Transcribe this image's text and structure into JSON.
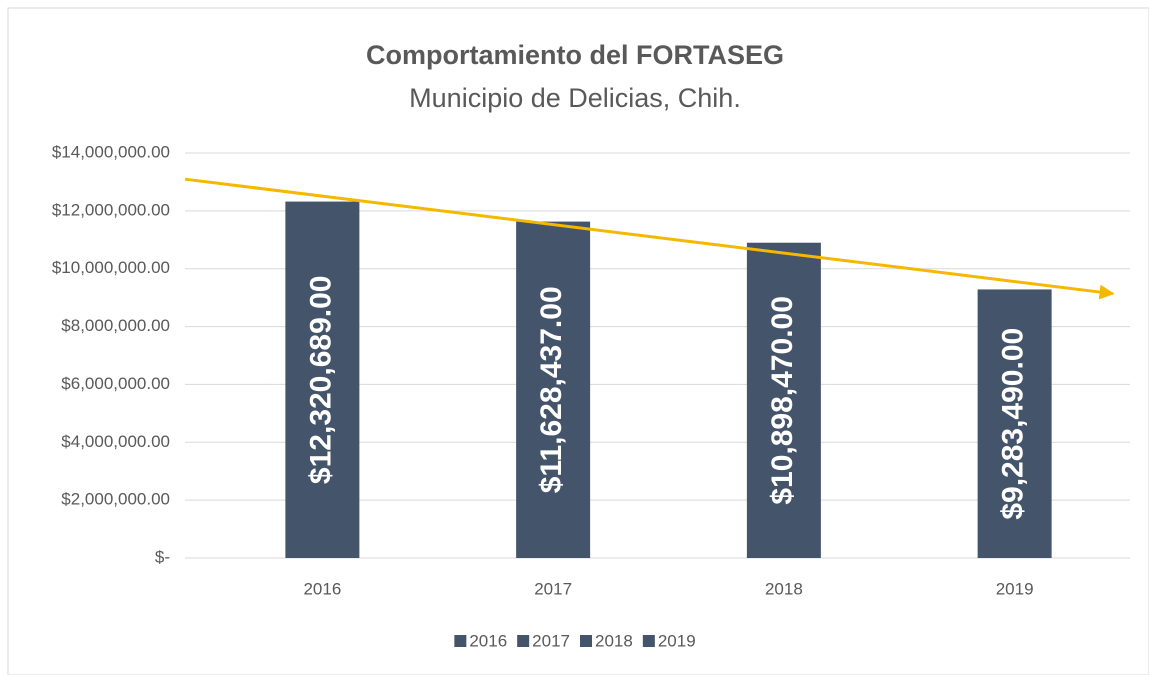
{
  "chart_data": {
    "type": "bar",
    "title": "Comportamiento del FORTASEG",
    "subtitle": "Municipio de Delicias, Chih.",
    "categories": [
      "2016",
      "2017",
      "2018",
      "2019"
    ],
    "series": [
      {
        "name": "2016",
        "color": "#44546a",
        "values": [
          12320689,
          null,
          null,
          null
        ],
        "value_labels": [
          "$12,320,689.00",
          null,
          null,
          null
        ]
      },
      {
        "name": "2017",
        "color": "#44546a",
        "values": [
          null,
          11628437,
          null,
          null
        ],
        "value_labels": [
          null,
          "$11,628,437.00",
          null,
          null
        ]
      },
      {
        "name": "2018",
        "color": "#44546a",
        "values": [
          null,
          null,
          10898470,
          null
        ],
        "value_labels": [
          null,
          null,
          "$10,898,470.00",
          null
        ]
      },
      {
        "name": "2019",
        "color": "#44546a",
        "values": [
          null,
          null,
          null,
          9283490
        ],
        "value_labels": [
          null,
          null,
          null,
          "$9,283,490.00"
        ]
      }
    ],
    "ylim": [
      0,
      14000000
    ],
    "yticks": [
      {
        "value": 0,
        "label": "$-"
      },
      {
        "value": 2000000,
        "label": "$2,000,000.00"
      },
      {
        "value": 4000000,
        "label": "$4,000,000.00"
      },
      {
        "value": 6000000,
        "label": "$6,000,000.00"
      },
      {
        "value": 8000000,
        "label": "$8,000,000.00"
      },
      {
        "value": 10000000,
        "label": "$10,000,000.00"
      },
      {
        "value": 12000000,
        "label": "$12,000,000.00"
      },
      {
        "value": 14000000,
        "label": "$14,000,000.00"
      }
    ],
    "grid": true,
    "trendline": {
      "type": "linear",
      "color": "#f5b800"
    },
    "legend": "bottom"
  }
}
